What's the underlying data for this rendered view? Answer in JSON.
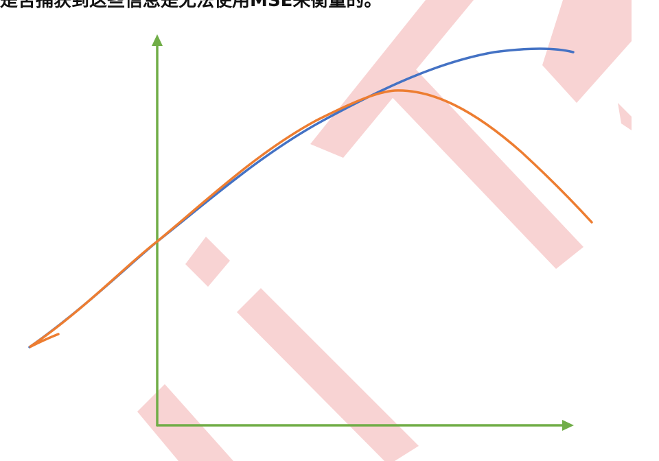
{
  "caption": {
    "text": "是否捕获到这些信息是无法使用MSE来衡量的。"
  },
  "watermark": {
    "color": "#f8d3d3"
  },
  "axes": {
    "color": "#70ad47"
  },
  "curves": [
    {
      "name": "blue-curve",
      "color": "#4472c4"
    },
    {
      "name": "orange-curve",
      "color": "#ed7d31"
    }
  ]
}
